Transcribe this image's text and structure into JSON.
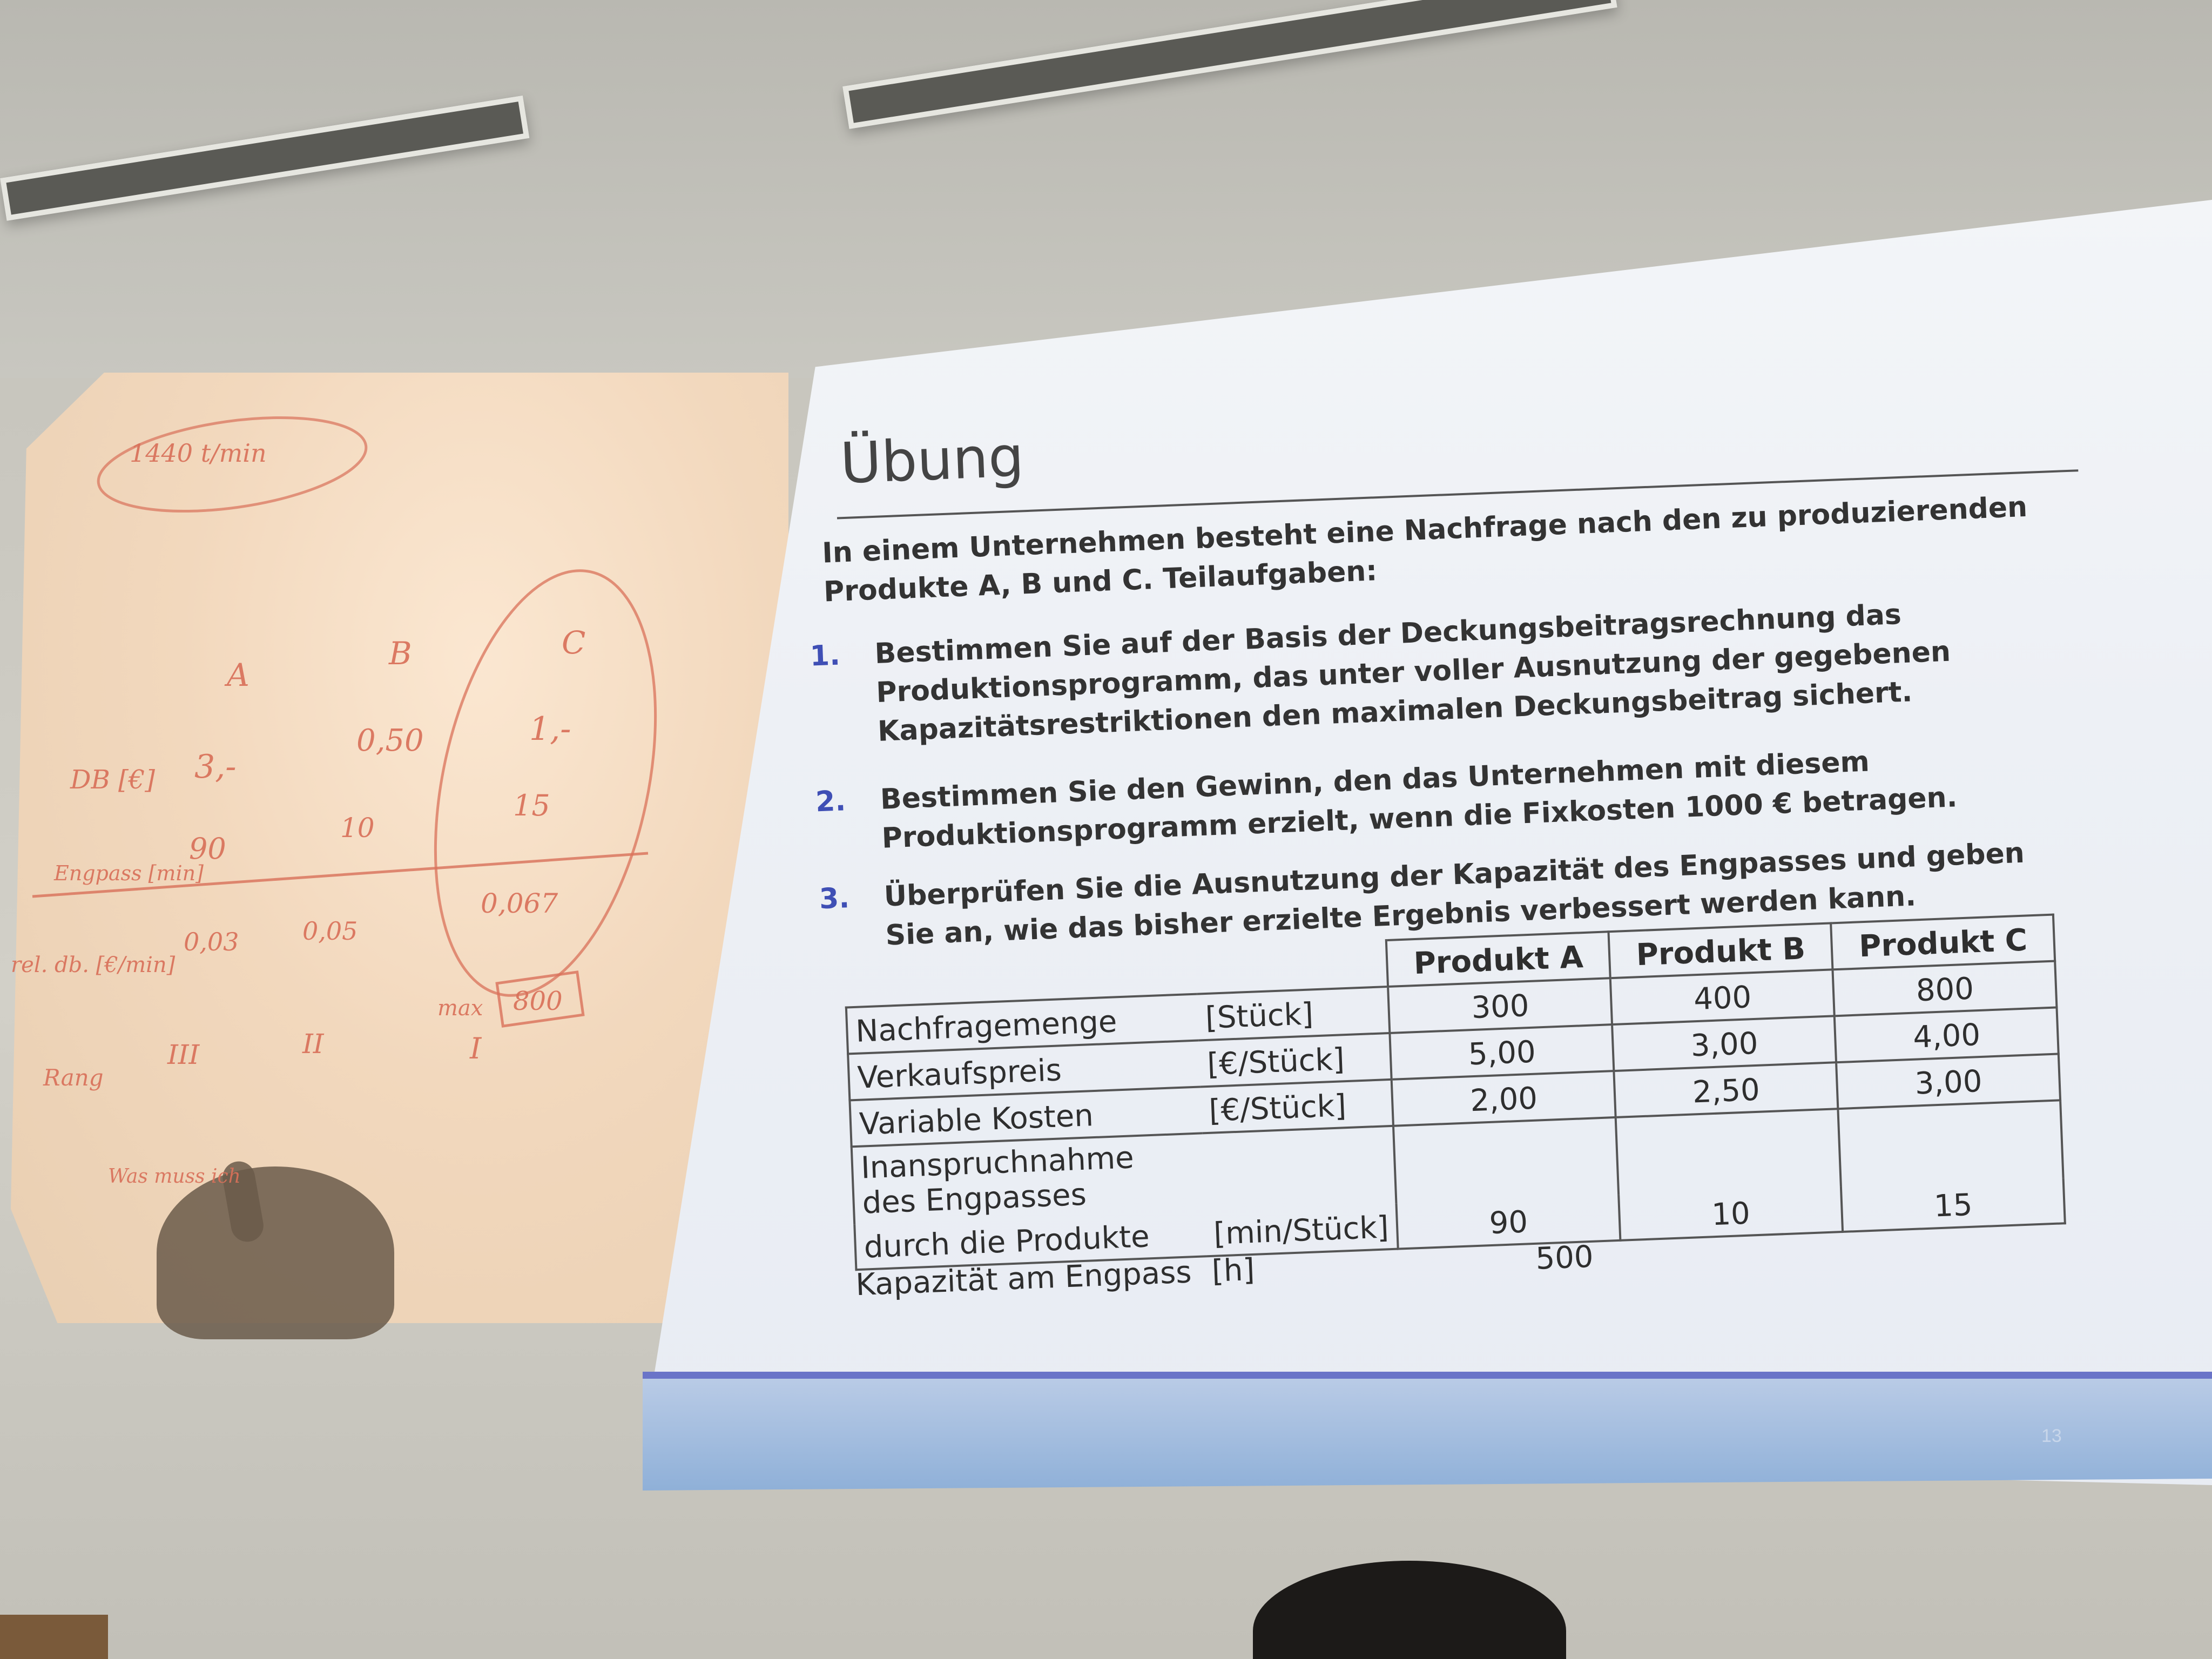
{
  "slide": {
    "title": "Übung",
    "intro": "In einem Unternehmen besteht eine Nachfrage nach den zu produzierenden Produkte A, B und C.  Teilaufgaben:",
    "tasks": [
      {
        "num": "1.",
        "text": "Bestimmen Sie auf der Basis der Deckungsbeitragsrechnung das Produktionsprogramm, das unter voller Ausnutzung der gegebenen Kapazitätsrestriktionen den maximalen Deckungsbeitrag sichert."
      },
      {
        "num": "2.",
        "text": "Bestimmen Sie den Gewinn, den das Unternehmen mit diesem Produktionsprogramm erzielt, wenn die Fixkosten 1000 € betragen."
      },
      {
        "num": "3.",
        "text": "Überprüfen Sie die Ausnutzung der Kapazität des Engpasses und  geben Sie an, wie das bisher erzielte Ergebnis verbessert werden  kann."
      }
    ],
    "table": {
      "headers": [
        "Produkt A",
        "Produkt B",
        "Produkt C"
      ],
      "rows": [
        {
          "label": "Nachfragemenge",
          "unit": "[Stück]",
          "values": [
            "300",
            "400",
            "800"
          ]
        },
        {
          "label": "Verkaufspreis",
          "unit": "[€/Stück]",
          "values": [
            "5,00",
            "3,00",
            "4,00"
          ]
        },
        {
          "label": "Variable Kosten",
          "unit": "[€/Stück]",
          "values": [
            "2,00",
            "2,50",
            "3,00"
          ]
        },
        {
          "label_line1": "Inanspruchnahme des Engpasses",
          "label_line2": "durch die Produkte",
          "unit": "[min/Stück]",
          "values": [
            "90",
            "10",
            "15"
          ]
        }
      ]
    },
    "capacity": {
      "label": "Kapazität am Engpass",
      "unit": "[h]",
      "value": "500"
    },
    "page_number": "13"
  },
  "whiteboard": {
    "note_top": "1440 t/min",
    "col_a": "A",
    "col_b": "B",
    "col_c": "C",
    "row_db": "DB [€]",
    "db_a": "3,-",
    "db_b": "0,50",
    "db_c": "1,-",
    "row_engpass": "Engpass [min]",
    "eng_a": "90",
    "eng_b": "10",
    "eng_c": "15",
    "row_rel": "rel. db. [€/min]",
    "rel_a": "0,03",
    "rel_b": "0,05",
    "rel_c": "0,067",
    "max_label": "max",
    "max_value": "800",
    "row_rang": "Rang",
    "rang_a": "III",
    "rang_b": "II",
    "rang_c": "I",
    "bottom_note": "Was muss ich"
  }
}
